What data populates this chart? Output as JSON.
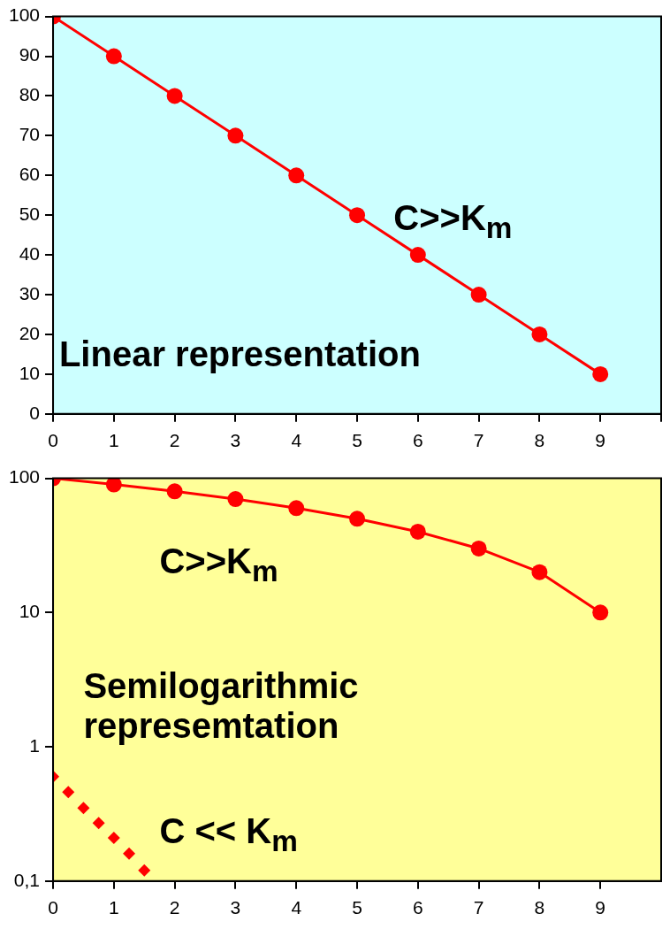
{
  "chart_data": [
    {
      "type": "line",
      "x": [
        0,
        1,
        2,
        3,
        4,
        5,
        6,
        7,
        8,
        9
      ],
      "values": [
        100,
        90,
        80,
        70,
        60,
        50,
        40,
        30,
        20,
        10
      ],
      "color": "#ff0000",
      "marker": "circle",
      "line_style": "solid",
      "xlim": [
        0,
        10
      ],
      "xticks": [
        0,
        1,
        2,
        3,
        4,
        5,
        6,
        7,
        8,
        9,
        {
          "value": 10,
          "label": null
        }
      ],
      "ylim": [
        0,
        100
      ],
      "yticks": [
        0,
        10,
        20,
        30,
        40,
        50,
        60,
        70,
        80,
        90,
        100
      ],
      "grid": false,
      "legend": false,
      "annotations": [
        "C>>K$_{m}$",
        "Linear representation"
      ]
    },
    {
      "type": "line",
      "log": "y",
      "marker": "circle",
      "line_style": "solid",
      "grid": false,
      "legend": false,
      "series": [
        {
          "color": "#ff0000",
          "x": [
            0,
            1,
            2,
            3,
            4,
            5,
            6,
            7,
            8,
            9
          ],
          "values": [
            100,
            90,
            80,
            70,
            60,
            50,
            40,
            30,
            20,
            10
          ]
        },
        {
          "type": "scatter",
          "marker": "diamond",
          "color": "#ff0000",
          "x": [
            0,
            0.25,
            0.5,
            0.75,
            1,
            1.25,
            1.5
          ],
          "values": [
            0.6,
            0.46,
            0.35,
            0.27,
            0.21,
            0.16,
            0.12
          ]
        }
      ],
      "xlim": [
        0,
        10
      ],
      "xticks": [
        0,
        1,
        2,
        3,
        4,
        5,
        6,
        7,
        8,
        9
      ],
      "ylim": [
        0.1,
        100
      ],
      "yticks": [
        {
          "value": 0.1,
          "label": "0,1"
        },
        1,
        10,
        100
      ],
      "annotations": [
        "C>>K$_{m}$",
        "Semilogarithmic\nrepresemtation",
        "C << K$_{m}$"
      ]
    }
  ]
}
